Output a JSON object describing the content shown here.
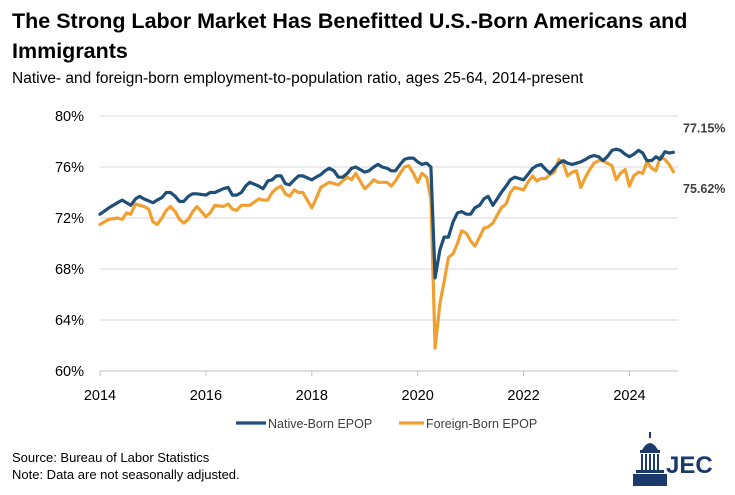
{
  "title": "The Strong Labor Market Has Benefitted U.S.-Born Americans and Immigrants",
  "subtitle": "Native- and foreign-born employment-to-population ratio, ages 25-64, 2014-present",
  "source": "Source: Bureau of Labor Statistics",
  "note": "Note: Data are not seasonally adjusted.",
  "logo_text": "JEC",
  "chart_data": {
    "type": "line",
    "title": "",
    "xlabel": "",
    "ylabel": "",
    "xlim": [
      2014,
      2024.917
    ],
    "ylim": [
      60,
      80
    ],
    "y_ticks": [
      60,
      64,
      68,
      72,
      76,
      80
    ],
    "y_tick_labels": [
      "60%",
      "64%",
      "68%",
      "72%",
      "76%",
      "80%"
    ],
    "x_ticks": [
      2014,
      2016,
      2018,
      2020,
      2022,
      2024
    ],
    "x_tick_labels": [
      "2014",
      "2016",
      "2018",
      "2020",
      "2022",
      "2024"
    ],
    "grid": "horizontal",
    "legend": "bottom",
    "end_labels": [
      "77.15%",
      "75.62%"
    ],
    "series": [
      {
        "name": "Native-Born EPOP",
        "color": "#1f4e79",
        "points": [
          [
            2014.0,
            72.3
          ],
          [
            2014.17,
            72.8
          ],
          [
            2014.33,
            73.2
          ],
          [
            2014.42,
            73.4
          ],
          [
            2014.5,
            73.2
          ],
          [
            2014.58,
            73.0
          ],
          [
            2014.67,
            73.5
          ],
          [
            2014.75,
            73.7
          ],
          [
            2014.83,
            73.5
          ],
          [
            2015.0,
            73.2
          ],
          [
            2015.08,
            73.4
          ],
          [
            2015.17,
            73.6
          ],
          [
            2015.25,
            74.0
          ],
          [
            2015.33,
            74.0
          ],
          [
            2015.42,
            73.7
          ],
          [
            2015.5,
            73.3
          ],
          [
            2015.58,
            73.3
          ],
          [
            2015.67,
            73.7
          ],
          [
            2015.75,
            73.9
          ],
          [
            2015.83,
            73.9
          ],
          [
            2016.0,
            73.8
          ],
          [
            2016.08,
            74.0
          ],
          [
            2016.17,
            74.0
          ],
          [
            2016.33,
            74.3
          ],
          [
            2016.42,
            74.4
          ],
          [
            2016.5,
            73.8
          ],
          [
            2016.58,
            73.8
          ],
          [
            2016.67,
            74.0
          ],
          [
            2016.75,
            74.5
          ],
          [
            2016.83,
            74.8
          ],
          [
            2017.0,
            74.5
          ],
          [
            2017.08,
            74.3
          ],
          [
            2017.17,
            74.9
          ],
          [
            2017.25,
            75.0
          ],
          [
            2017.33,
            75.3
          ],
          [
            2017.42,
            75.3
          ],
          [
            2017.5,
            74.7
          ],
          [
            2017.58,
            74.6
          ],
          [
            2017.67,
            75.0
          ],
          [
            2017.75,
            75.3
          ],
          [
            2017.83,
            75.3
          ],
          [
            2018.0,
            75.0
          ],
          [
            2018.08,
            75.2
          ],
          [
            2018.17,
            75.4
          ],
          [
            2018.25,
            75.7
          ],
          [
            2018.33,
            75.9
          ],
          [
            2018.42,
            75.7
          ],
          [
            2018.5,
            75.2
          ],
          [
            2018.58,
            75.2
          ],
          [
            2018.67,
            75.5
          ],
          [
            2018.75,
            75.9
          ],
          [
            2018.83,
            76.0
          ],
          [
            2019.0,
            75.6
          ],
          [
            2019.08,
            75.7
          ],
          [
            2019.17,
            76.0
          ],
          [
            2019.25,
            76.2
          ],
          [
            2019.33,
            76.0
          ],
          [
            2019.42,
            75.9
          ],
          [
            2019.5,
            75.7
          ],
          [
            2019.58,
            75.7
          ],
          [
            2019.67,
            76.2
          ],
          [
            2019.75,
            76.6
          ],
          [
            2019.83,
            76.7
          ],
          [
            2019.92,
            76.7
          ],
          [
            2020.0,
            76.4
          ],
          [
            2020.08,
            76.2
          ],
          [
            2020.17,
            76.3
          ],
          [
            2020.25,
            76.0
          ],
          [
            2020.33,
            67.3
          ],
          [
            2020.42,
            69.5
          ],
          [
            2020.5,
            70.5
          ],
          [
            2020.58,
            70.5
          ],
          [
            2020.67,
            71.7
          ],
          [
            2020.75,
            72.4
          ],
          [
            2020.83,
            72.5
          ],
          [
            2020.92,
            72.3
          ],
          [
            2021.0,
            72.3
          ],
          [
            2021.08,
            72.8
          ],
          [
            2021.17,
            73.0
          ],
          [
            2021.25,
            73.5
          ],
          [
            2021.33,
            73.7
          ],
          [
            2021.42,
            73.0
          ],
          [
            2021.5,
            73.5
          ],
          [
            2021.58,
            74.0
          ],
          [
            2021.67,
            74.5
          ],
          [
            2021.75,
            75.0
          ],
          [
            2021.83,
            75.2
          ],
          [
            2022.0,
            75.0
          ],
          [
            2022.08,
            75.4
          ],
          [
            2022.17,
            75.9
          ],
          [
            2022.25,
            76.1
          ],
          [
            2022.33,
            76.2
          ],
          [
            2022.42,
            75.8
          ],
          [
            2022.5,
            75.5
          ],
          [
            2022.58,
            75.9
          ],
          [
            2022.67,
            76.3
          ],
          [
            2022.75,
            76.5
          ],
          [
            2022.83,
            76.3
          ],
          [
            2022.92,
            76.2
          ],
          [
            2023.0,
            76.3
          ],
          [
            2023.08,
            76.4
          ],
          [
            2023.17,
            76.6
          ],
          [
            2023.25,
            76.8
          ],
          [
            2023.33,
            76.9
          ],
          [
            2023.42,
            76.8
          ],
          [
            2023.5,
            76.5
          ],
          [
            2023.58,
            76.8
          ],
          [
            2023.67,
            77.3
          ],
          [
            2023.75,
            77.4
          ],
          [
            2023.83,
            77.3
          ],
          [
            2023.92,
            77.0
          ],
          [
            2024.0,
            76.8
          ],
          [
            2024.08,
            77.0
          ],
          [
            2024.17,
            77.3
          ],
          [
            2024.25,
            77.1
          ],
          [
            2024.33,
            76.5
          ],
          [
            2024.42,
            76.5
          ],
          [
            2024.5,
            76.8
          ],
          [
            2024.58,
            76.6
          ],
          [
            2024.67,
            77.2
          ],
          [
            2024.75,
            77.1
          ],
          [
            2024.83,
            77.15
          ]
        ]
      },
      {
        "name": "Foreign-Born EPOP",
        "color": "#f0a030",
        "points": [
          [
            2014.0,
            71.5
          ],
          [
            2014.17,
            71.9
          ],
          [
            2014.33,
            72.0
          ],
          [
            2014.42,
            71.9
          ],
          [
            2014.5,
            72.4
          ],
          [
            2014.58,
            72.3
          ],
          [
            2014.67,
            73.1
          ],
          [
            2014.75,
            73.0
          ],
          [
            2014.83,
            72.9
          ],
          [
            2014.92,
            72.7
          ],
          [
            2015.0,
            71.7
          ],
          [
            2015.08,
            71.5
          ],
          [
            2015.17,
            72.0
          ],
          [
            2015.25,
            72.6
          ],
          [
            2015.33,
            72.9
          ],
          [
            2015.42,
            72.5
          ],
          [
            2015.5,
            71.9
          ],
          [
            2015.58,
            71.6
          ],
          [
            2015.67,
            71.9
          ],
          [
            2015.75,
            72.5
          ],
          [
            2015.83,
            72.9
          ],
          [
            2016.0,
            72.1
          ],
          [
            2016.08,
            72.4
          ],
          [
            2016.17,
            73.0
          ],
          [
            2016.33,
            72.9
          ],
          [
            2016.42,
            73.1
          ],
          [
            2016.5,
            72.7
          ],
          [
            2016.58,
            72.6
          ],
          [
            2016.67,
            73.0
          ],
          [
            2016.75,
            73.0
          ],
          [
            2016.83,
            73.0
          ],
          [
            2017.0,
            73.5
          ],
          [
            2017.08,
            73.4
          ],
          [
            2017.17,
            73.4
          ],
          [
            2017.25,
            74.0
          ],
          [
            2017.33,
            74.3
          ],
          [
            2017.42,
            74.5
          ],
          [
            2017.5,
            73.9
          ],
          [
            2017.58,
            73.7
          ],
          [
            2017.67,
            74.2
          ],
          [
            2017.75,
            74.0
          ],
          [
            2017.83,
            74.0
          ],
          [
            2018.0,
            72.8
          ],
          [
            2018.08,
            73.5
          ],
          [
            2018.17,
            74.4
          ],
          [
            2018.25,
            74.6
          ],
          [
            2018.33,
            74.8
          ],
          [
            2018.42,
            74.7
          ],
          [
            2018.5,
            74.6
          ],
          [
            2018.58,
            74.9
          ],
          [
            2018.67,
            75.2
          ],
          [
            2018.75,
            75.0
          ],
          [
            2018.83,
            75.5
          ],
          [
            2019.0,
            74.3
          ],
          [
            2019.08,
            74.6
          ],
          [
            2019.17,
            75.0
          ],
          [
            2019.25,
            74.8
          ],
          [
            2019.33,
            74.8
          ],
          [
            2019.42,
            74.8
          ],
          [
            2019.5,
            74.5
          ],
          [
            2019.58,
            74.9
          ],
          [
            2019.67,
            75.5
          ],
          [
            2019.75,
            76.0
          ],
          [
            2019.83,
            76.1
          ],
          [
            2019.92,
            75.5
          ],
          [
            2020.0,
            74.8
          ],
          [
            2020.08,
            75.5
          ],
          [
            2020.17,
            75.2
          ],
          [
            2020.25,
            73.5
          ],
          [
            2020.33,
            61.8
          ],
          [
            2020.42,
            65.3
          ],
          [
            2020.5,
            67.0
          ],
          [
            2020.58,
            68.9
          ],
          [
            2020.67,
            69.2
          ],
          [
            2020.75,
            70.0
          ],
          [
            2020.83,
            71.0
          ],
          [
            2020.92,
            70.8
          ],
          [
            2021.0,
            70.2
          ],
          [
            2021.08,
            69.8
          ],
          [
            2021.17,
            70.5
          ],
          [
            2021.25,
            71.2
          ],
          [
            2021.33,
            71.3
          ],
          [
            2021.42,
            71.6
          ],
          [
            2021.5,
            72.2
          ],
          [
            2021.58,
            72.8
          ],
          [
            2021.67,
            73.1
          ],
          [
            2021.75,
            74.0
          ],
          [
            2021.83,
            74.4
          ],
          [
            2022.0,
            74.2
          ],
          [
            2022.08,
            74.8
          ],
          [
            2022.17,
            75.3
          ],
          [
            2022.25,
            74.9
          ],
          [
            2022.33,
            75.1
          ],
          [
            2022.42,
            75.1
          ],
          [
            2022.5,
            75.4
          ],
          [
            2022.58,
            75.6
          ],
          [
            2022.67,
            76.6
          ],
          [
            2022.75,
            76.3
          ],
          [
            2022.83,
            75.3
          ],
          [
            2022.92,
            75.6
          ],
          [
            2023.0,
            75.7
          ],
          [
            2023.08,
            74.4
          ],
          [
            2023.17,
            75.2
          ],
          [
            2023.25,
            75.8
          ],
          [
            2023.33,
            76.3
          ],
          [
            2023.42,
            76.5
          ],
          [
            2023.5,
            76.5
          ],
          [
            2023.58,
            76.3
          ],
          [
            2023.67,
            76.1
          ],
          [
            2023.75,
            75.0
          ],
          [
            2023.83,
            75.5
          ],
          [
            2023.92,
            75.8
          ],
          [
            2024.0,
            74.5
          ],
          [
            2024.08,
            75.3
          ],
          [
            2024.17,
            75.6
          ],
          [
            2024.25,
            75.5
          ],
          [
            2024.33,
            76.4
          ],
          [
            2024.42,
            75.9
          ],
          [
            2024.5,
            75.7
          ],
          [
            2024.58,
            76.8
          ],
          [
            2024.67,
            76.6
          ],
          [
            2024.75,
            76.2
          ],
          [
            2024.83,
            75.62
          ]
        ]
      }
    ]
  }
}
